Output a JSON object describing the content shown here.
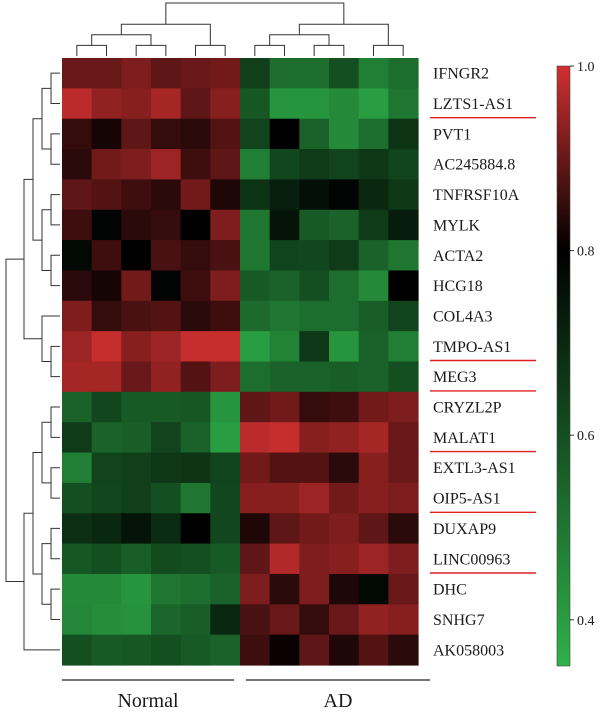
{
  "chart_data": {
    "type": "heatmap",
    "title": "",
    "rows": [
      "IFNGR2",
      "LZTS1-AS1",
      "PVT1",
      "AC245884.8",
      "TNFRSF10A",
      "MYLK",
      "ACTA2",
      "HCG18",
      "COL4A3",
      "TMPO-AS1",
      "MEG3",
      "CRYZL2P",
      "MALAT1",
      "EXTL3-AS1",
      "OIP5-AS1",
      "DUXAP9",
      "LINC00963",
      "DHC",
      "SNHG7",
      "AK058003"
    ],
    "underlined_rows": [
      "LZTS1-AS1",
      "TMPO-AS1",
      "MEG3",
      "MALAT1",
      "OIP5-AS1",
      "LINC00963"
    ],
    "groups": [
      {
        "label": "Normal",
        "columns": 6
      },
      {
        "label": "AD",
        "columns": 6
      }
    ],
    "colorbar": {
      "min": 0.35,
      "max": 1.0,
      "ticks": [
        "1.0",
        "0.8",
        "0.6",
        "0.4"
      ],
      "tick_values": [
        1.0,
        0.8,
        0.6,
        0.4
      ],
      "colors": [
        "#2eb14a",
        "#000000",
        "#d03030"
      ]
    },
    "values": [
      [
        0.9,
        0.9,
        0.92,
        0.89,
        0.9,
        0.91,
        0.64,
        0.52,
        0.52,
        0.6,
        0.48,
        0.52
      ],
      [
        0.98,
        0.94,
        0.93,
        0.96,
        0.89,
        0.93,
        0.58,
        0.42,
        0.42,
        0.45,
        0.4,
        0.5
      ],
      [
        0.85,
        0.82,
        0.89,
        0.85,
        0.84,
        0.88,
        0.63,
        0.8,
        0.55,
        0.45,
        0.52,
        0.67
      ],
      [
        0.84,
        0.91,
        0.92,
        0.95,
        0.86,
        0.89,
        0.48,
        0.62,
        0.65,
        0.63,
        0.66,
        0.63
      ],
      [
        0.89,
        0.88,
        0.86,
        0.84,
        0.91,
        0.83,
        0.67,
        0.72,
        0.76,
        0.79,
        0.7,
        0.66
      ],
      [
        0.86,
        0.79,
        0.84,
        0.85,
        0.8,
        0.92,
        0.5,
        0.75,
        0.57,
        0.55,
        0.65,
        0.73
      ],
      [
        0.78,
        0.86,
        0.8,
        0.87,
        0.85,
        0.87,
        0.5,
        0.63,
        0.62,
        0.65,
        0.55,
        0.5
      ],
      [
        0.84,
        0.82,
        0.91,
        0.79,
        0.86,
        0.92,
        0.57,
        0.55,
        0.6,
        0.52,
        0.45,
        0.8
      ],
      [
        0.92,
        0.85,
        0.87,
        0.88,
        0.84,
        0.86,
        0.53,
        0.5,
        0.52,
        0.52,
        0.56,
        0.63
      ],
      [
        0.95,
        0.99,
        0.93,
        0.95,
        0.99,
        0.99,
        0.4,
        0.47,
        0.66,
        0.42,
        0.55,
        0.48
      ],
      [
        0.96,
        0.96,
        0.9,
        0.94,
        0.88,
        0.92,
        0.52,
        0.55,
        0.55,
        0.56,
        0.55,
        0.6
      ],
      [
        0.55,
        0.62,
        0.57,
        0.57,
        0.58,
        0.42,
        0.89,
        0.91,
        0.85,
        0.86,
        0.91,
        0.92
      ],
      [
        0.65,
        0.55,
        0.56,
        0.63,
        0.55,
        0.4,
        0.98,
        0.99,
        0.93,
        0.94,
        0.96,
        0.9
      ],
      [
        0.48,
        0.63,
        0.64,
        0.66,
        0.67,
        0.63,
        0.91,
        0.88,
        0.88,
        0.84,
        0.93,
        0.9
      ],
      [
        0.6,
        0.62,
        0.64,
        0.6,
        0.5,
        0.62,
        0.93,
        0.93,
        0.95,
        0.91,
        0.93,
        0.92
      ],
      [
        0.68,
        0.7,
        0.75,
        0.69,
        0.8,
        0.62,
        0.83,
        0.89,
        0.91,
        0.92,
        0.89,
        0.84
      ],
      [
        0.58,
        0.6,
        0.56,
        0.61,
        0.6,
        0.57,
        0.89,
        0.97,
        0.92,
        0.93,
        0.95,
        0.92
      ],
      [
        0.45,
        0.45,
        0.42,
        0.5,
        0.52,
        0.55,
        0.92,
        0.84,
        0.92,
        0.83,
        0.78,
        0.9
      ],
      [
        0.46,
        0.44,
        0.43,
        0.54,
        0.56,
        0.7,
        0.87,
        0.9,
        0.85,
        0.9,
        0.94,
        0.93
      ],
      [
        0.6,
        0.57,
        0.58,
        0.6,
        0.57,
        0.55,
        0.86,
        0.81,
        0.89,
        0.83,
        0.88,
        0.84
      ]
    ],
    "row_dendrogram": [
      [
        "IFNGR2",
        "LZTS1-AS1",
        1
      ],
      [
        "PVT1",
        "AC245884.8",
        1
      ],
      [
        "TNFRSF10A",
        "MYLK",
        1
      ],
      [
        "ACTA2",
        "HCG18",
        1
      ],
      [
        "TMPO-AS1",
        "MEG3",
        1
      ],
      [
        "m0",
        "m1",
        2
      ],
      [
        "m2",
        "m3",
        2
      ],
      [
        "COL4A3",
        "m4",
        2
      ],
      [
        "m5",
        "m6",
        3
      ],
      [
        "m8",
        "m7",
        4
      ],
      [
        "CRYZL2P",
        "MALAT1",
        1
      ],
      [
        "EXTL3-AS1",
        "OIP5-AS1",
        1
      ],
      [
        "DUXAP9",
        "LINC00963",
        1
      ],
      [
        "DHC",
        "SNHG7",
        1
      ],
      [
        "m10",
        "m11",
        2
      ],
      [
        "m12",
        "m13",
        2
      ],
      [
        "m14",
        "m15",
        3
      ],
      [
        "m16",
        "AK058003",
        4
      ],
      [
        "m9",
        "m17",
        6
      ]
    ],
    "column_dendrogram": [
      [
        "c1",
        "c2",
        1
      ],
      [
        "c3",
        "c4",
        1
      ],
      [
        "c5",
        "c6",
        1
      ],
      [
        "m0",
        "m1",
        2
      ],
      [
        "m3",
        "m2",
        3
      ],
      [
        "c7",
        "c8",
        1
      ],
      [
        "c9",
        "c10",
        1
      ],
      [
        "c11",
        "c12",
        1
      ],
      [
        "m5",
        "m6",
        2
      ],
      [
        "m8",
        "m7",
        3
      ],
      [
        "m4",
        "m9",
        5
      ]
    ]
  }
}
